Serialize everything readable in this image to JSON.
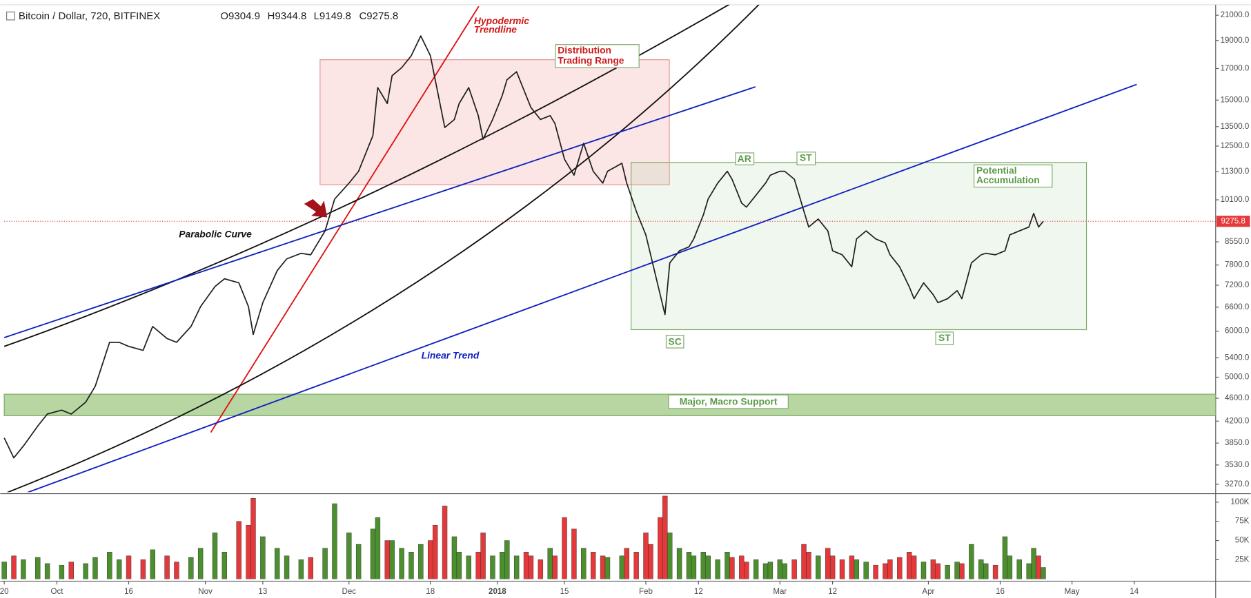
{
  "header": {
    "symbol": "Bitcoin / Dollar, 720, BITFINEX",
    "open": "O9304.9",
    "high": "H9344.8",
    "low": "L9149.8",
    "close": "C9275.8"
  },
  "chart_data": {
    "type": "line",
    "color": "#1f1f1f",
    "log_scale": true,
    "grid": false,
    "x": [
      "2017-09-20",
      "2017-09-22",
      "2017-09-24",
      "2017-09-27",
      "2017-09-29",
      "2017-10-02",
      "2017-10-04",
      "2017-10-07",
      "2017-10-09",
      "2017-10-12",
      "2017-10-14",
      "2017-10-16",
      "2017-10-19",
      "2017-10-21",
      "2017-10-24",
      "2017-10-26",
      "2017-10-29",
      "2017-10-31",
      "2017-11-03",
      "2017-11-05",
      "2017-11-08",
      "2017-11-10",
      "2017-11-11",
      "2017-11-13",
      "2017-11-16",
      "2017-11-18",
      "2017-11-21",
      "2017-11-23",
      "2017-11-26",
      "2017-11-28",
      "2017-12-01",
      "2017-12-03",
      "2017-12-06",
      "2017-12-07",
      "2017-12-09",
      "2017-12-10",
      "2017-12-12",
      "2017-12-14",
      "2017-12-16",
      "2017-12-18",
      "2017-12-19",
      "2017-12-21",
      "2017-12-23",
      "2017-12-24",
      "2017-12-26",
      "2017-12-28",
      "2017-12-29",
      "2017-12-31",
      "2018-01-02",
      "2018-01-03",
      "2018-01-05",
      "2018-01-07",
      "2018-01-08",
      "2018-01-10",
      "2018-01-12",
      "2018-01-13",
      "2018-01-15",
      "2018-01-17",
      "2018-01-19",
      "2018-01-21",
      "2018-01-23",
      "2018-01-24",
      "2018-01-27",
      "2018-01-28",
      "2018-01-30",
      "2018-02-01",
      "2018-02-02",
      "2018-02-04",
      "2018-02-05",
      "2018-02-06",
      "2018-02-08",
      "2018-02-10",
      "2018-02-11",
      "2018-02-13",
      "2018-02-14",
      "2018-02-16",
      "2018-02-18",
      "2018-02-19",
      "2018-02-21",
      "2018-02-22",
      "2018-02-24",
      "2018-02-26",
      "2018-02-27",
      "2018-03-01",
      "2018-03-02",
      "2018-03-04",
      "2018-03-06",
      "2018-03-07",
      "2018-03-09",
      "2018-03-11",
      "2018-03-12",
      "2018-03-14",
      "2018-03-16",
      "2018-03-17",
      "2018-03-19",
      "2018-03-21",
      "2018-03-23",
      "2018-03-24",
      "2018-03-26",
      "2018-03-28",
      "2018-03-29",
      "2018-03-31",
      "2018-04-02",
      "2018-04-03",
      "2018-04-05",
      "2018-04-07",
      "2018-04-08",
      "2018-04-10",
      "2018-04-12",
      "2018-04-13",
      "2018-04-15",
      "2018-04-17",
      "2018-04-18",
      "2018-04-20",
      "2018-04-22",
      "2018-04-23",
      "2018-04-24",
      "2018-04-25"
    ],
    "values": [
      3929,
      3631,
      3805,
      4118,
      4320,
      4387,
      4320,
      4528,
      4823,
      5740,
      5740,
      5649,
      5561,
      6113,
      5828,
      5740,
      6113,
      6615,
      7161,
      7386,
      7268,
      6615,
      5922,
      6718,
      7625,
      7993,
      8171,
      8121,
      8929,
      10130,
      10790,
      11310,
      13035,
      15760,
      14799,
      16519,
      17056,
      17877,
      19347,
      17877,
      16258,
      13457,
      13887,
      14799,
      15760,
      14106,
      12840,
      13887,
      15267,
      16258,
      16785,
      15267,
      14564,
      13887,
      14106,
      13673,
      11863,
      11136,
      12636,
      11310,
      10790,
      11310,
      11676,
      10790,
      9656,
      8789,
      8121,
      6936,
      6409,
      7866,
      8251,
      8382,
      8650,
      9511,
      10130,
      10790,
      11310,
      10960,
      9971,
      9813,
      10290,
      10790,
      11136,
      11310,
      11310,
      10960,
      9656,
      9068,
      9360,
      8929,
      8251,
      8121,
      7747,
      8650,
      8929,
      8650,
      8513,
      8121,
      7747,
      7161,
      6825,
      7268,
      6936,
      6718,
      6825,
      7046,
      6825,
      7866,
      8121,
      8171,
      8121,
      8251,
      8789,
      8929,
      9068,
      9570,
      9068,
      9275.8
    ],
    "xlim": [
      "2017-09-20",
      "2018-05-31"
    ],
    "xticks": [
      {
        "value": "2017-09-20",
        "label": "20"
      },
      {
        "value": "2017-10-01",
        "label": "Oct"
      },
      {
        "value": "2017-10-16",
        "label": "16"
      },
      {
        "value": "2017-11-01",
        "label": "Nov"
      },
      {
        "value": "2017-11-13",
        "label": "13"
      },
      {
        "value": "2017-12-01",
        "label": "Dec"
      },
      {
        "value": "2017-12-18",
        "label": "18"
      },
      {
        "value": "2018-01-01",
        "label": "2018"
      },
      {
        "value": "2018-01-15",
        "label": "15"
      },
      {
        "value": "2018-02-01",
        "label": "Feb"
      },
      {
        "value": "2018-02-12",
        "label": "12"
      },
      {
        "value": "2018-03-01",
        "label": "Mar"
      },
      {
        "value": "2018-03-12",
        "label": "12"
      },
      {
        "value": "2018-04-01",
        "label": "Apr"
      },
      {
        "value": "2018-04-16",
        "label": "16"
      },
      {
        "value": "2018-05-01",
        "label": "May"
      },
      {
        "value": "2018-05-14",
        "label": "14"
      }
    ],
    "ylim": [
      3170,
      21750
    ],
    "yticks": [
      {
        "value": 21000,
        "label": "21000.0"
      },
      {
        "value": 19000,
        "label": "19000.0"
      },
      {
        "value": 17000,
        "label": "17000.0"
      },
      {
        "value": 15000,
        "label": "15000.0"
      },
      {
        "value": 13500,
        "label": "13500.0"
      },
      {
        "value": 12500,
        "label": "12500.0"
      },
      {
        "value": 11300,
        "label": "11300.0"
      },
      {
        "value": 10100,
        "label": "10100.0"
      },
      {
        "value": 8550,
        "label": "8550.0"
      },
      {
        "value": 7800,
        "label": "7800.0"
      },
      {
        "value": 7200,
        "label": "7200.0"
      },
      {
        "value": 6600,
        "label": "6600.0"
      },
      {
        "value": 6000,
        "label": "6000.0"
      },
      {
        "value": 5400,
        "label": "5400.0"
      },
      {
        "value": 5000,
        "label": "5000.0"
      },
      {
        "value": 4600,
        "label": "4600.0"
      },
      {
        "value": 4200,
        "label": "4200.0"
      },
      {
        "value": 3850,
        "label": "3850.0"
      },
      {
        "value": 3530,
        "label": "3530.0"
      },
      {
        "value": 3270,
        "label": "3270.0"
      }
    ],
    "last_price": 9275.8,
    "last_price_color": "#e5383b",
    "volume": {
      "values": [
        22000,
        30000,
        25000,
        28000,
        20000,
        18000,
        22000,
        20000,
        28000,
        35000,
        25000,
        30000,
        25000,
        38000,
        30000,
        22000,
        28000,
        40000,
        60000,
        35000,
        75000,
        70000,
        105000,
        55000,
        40000,
        30000,
        25000,
        28000,
        40000,
        98000,
        60000,
        45000,
        65000,
        80000,
        50000,
        50000,
        40000,
        35000,
        45000,
        50000,
        70000,
        95000,
        55000,
        35000,
        30000,
        35000,
        60000,
        30000,
        35000,
        50000,
        30000,
        35000,
        30000,
        25000,
        40000,
        30000,
        80000,
        65000,
        40000,
        35000,
        30000,
        28000,
        30000,
        40000,
        35000,
        60000,
        45000,
        80000,
        108000,
        60000,
        40000,
        35000,
        30000,
        35000,
        30000,
        25000,
        35000,
        28000,
        30000,
        22000,
        25000,
        20000,
        22000,
        25000,
        20000,
        25000,
        45000,
        35000,
        30000,
        40000,
        30000,
        25000,
        30000,
        25000,
        22000,
        18000,
        20000,
        25000,
        28000,
        35000,
        30000,
        22000,
        25000,
        20000,
        18000,
        22000,
        20000,
        45000,
        25000,
        20000,
        18000,
        55000,
        30000,
        25000,
        20000,
        40000,
        30000,
        15000
      ],
      "ylim": [
        0,
        111000
      ],
      "yticks": [
        {
          "value": 25000,
          "label": "25K"
        },
        {
          "value": 50000,
          "label": "50K"
        },
        {
          "value": 75000,
          "label": "75K"
        },
        {
          "value": 100000,
          "label": "100K"
        }
      ],
      "up_color": "#4c8f2e",
      "down_color": "#e5383b"
    },
    "annotations": {
      "hypodermic": [
        "Hypodermic",
        "Trendline"
      ],
      "distribution": [
        "Distribution",
        "Trading Range"
      ],
      "parabolic": "Parabolic Curve",
      "linear": "Linear Trend",
      "accumulation": [
        "Potential",
        "Accumulation"
      ],
      "support": "Major, Macro Support",
      "sc": "SC",
      "ar": "AR",
      "st_1": "ST",
      "st_2": "ST"
    }
  }
}
